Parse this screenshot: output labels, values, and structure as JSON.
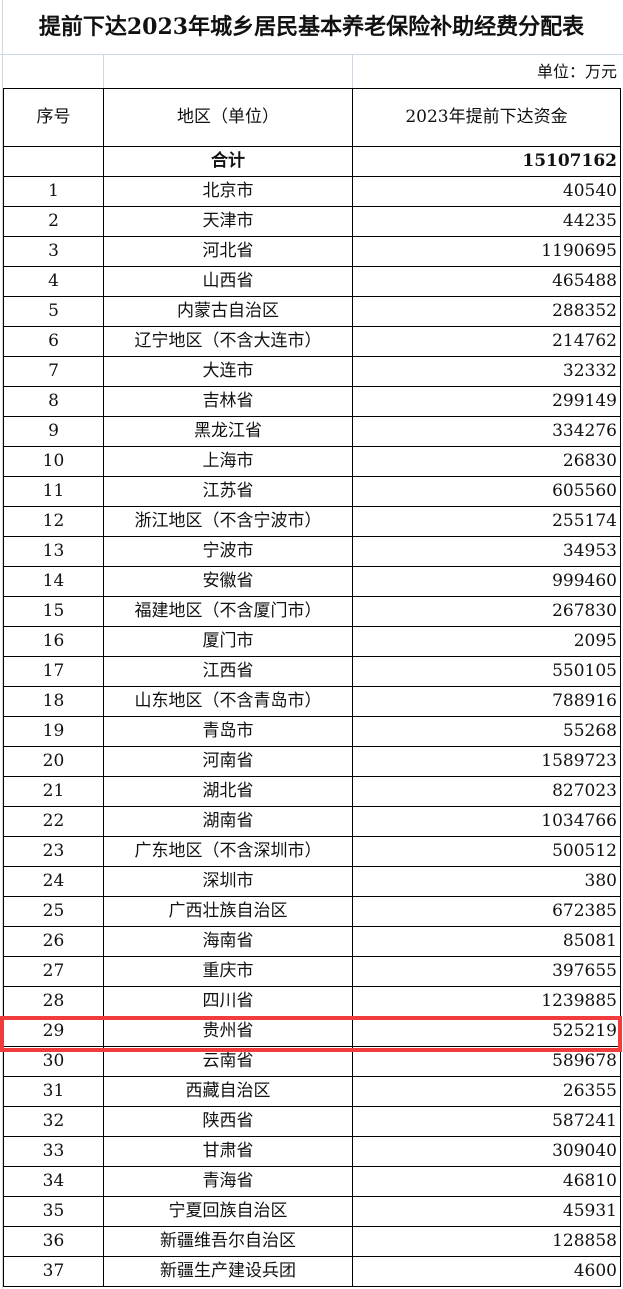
{
  "title": "提前下达2023年城乡居民基本养老保险补助经费分配表",
  "unit": "单位：万元",
  "headers": [
    "序号",
    "地区（单位）",
    "2023年提前下达资金"
  ],
  "total": {
    "label": "合计",
    "value": "15107162"
  },
  "rows": [
    [
      "1",
      "北京市",
      "40540"
    ],
    [
      "2",
      "天津市",
      "44235"
    ],
    [
      "3",
      "河北省",
      "1190695"
    ],
    [
      "4",
      "山西省",
      "465488"
    ],
    [
      "5",
      "内蒙古自治区",
      "288352"
    ],
    [
      "6",
      "辽宁地区（不含大连市）",
      "214762"
    ],
    [
      "7",
      "大连市",
      "32332"
    ],
    [
      "8",
      "吉林省",
      "299149"
    ],
    [
      "9",
      "黑龙江省",
      "334276"
    ],
    [
      "10",
      "上海市",
      "26830"
    ],
    [
      "11",
      "江苏省",
      "605560"
    ],
    [
      "12",
      "浙江地区（不含宁波市）",
      "255174"
    ],
    [
      "13",
      "宁波市",
      "34953"
    ],
    [
      "14",
      "安徽省",
      "999460"
    ],
    [
      "15",
      "福建地区（不含厦门市）",
      "267830"
    ],
    [
      "16",
      "厦门市",
      "2095"
    ],
    [
      "17",
      "江西省",
      "550105"
    ],
    [
      "18",
      "山东地区（不含青岛市）",
      "788916"
    ],
    [
      "19",
      "青岛市",
      "55268"
    ],
    [
      "20",
      "河南省",
      "1589723"
    ],
    [
      "21",
      "湖北省",
      "827023"
    ],
    [
      "22",
      "湖南省",
      "1034766"
    ],
    [
      "23",
      "广东地区（不含深圳市）",
      "500512"
    ],
    [
      "24",
      "深圳市",
      "380"
    ],
    [
      "25",
      "广西壮族自治区",
      "672385"
    ],
    [
      "26",
      "海南省",
      "85081"
    ],
    [
      "27",
      "重庆市",
      "397655"
    ],
    [
      "28",
      "四川省",
      "1239885"
    ],
    [
      "29",
      "贵州省",
      "525219"
    ],
    [
      "30",
      "云南省",
      "589678"
    ],
    [
      "31",
      "西藏自治区",
      "26355"
    ],
    [
      "32",
      "陕西省",
      "587241"
    ],
    [
      "33",
      "甘肃省",
      "309040"
    ],
    [
      "34",
      "青海省",
      "46810"
    ],
    [
      "35",
      "宁夏回族自治区",
      "45931"
    ],
    [
      "36",
      "新疆维吾尔自治区",
      "128858"
    ],
    [
      "37",
      "新疆生产建设兵团",
      "4600"
    ]
  ],
  "highlight_color": "#f03c3c"
}
